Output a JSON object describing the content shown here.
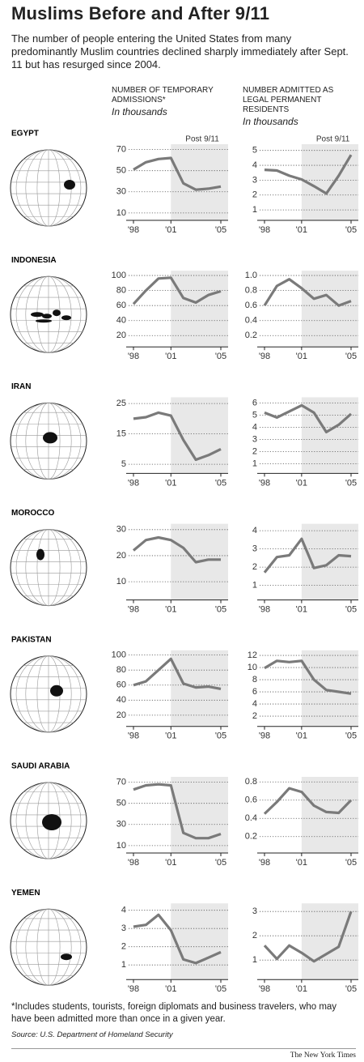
{
  "title": "Muslims Before and After 9/11",
  "subtitle": "The number of people entering the United States from many predominantly Muslim countries declined sharply immediately after Sept. 11 but has resurged since 2004.",
  "column_headers": [
    {
      "title": "NUMBER OF TEMPORARY ADMISSIONS*",
      "units": "In thousands"
    },
    {
      "title": "NUMBER ADMITTED AS LEGAL PERMANENT RESIDENTS",
      "units": "In thousands"
    }
  ],
  "shade_from_index": 3,
  "chart_data": [
    {
      "type": "line",
      "title": "EGYPT",
      "annotation": "Post 9/11",
      "categories": [
        "'98",
        null,
        null,
        "'01",
        null,
        null,
        null,
        "'05"
      ],
      "color": "#7a7a7a",
      "values": [
        51,
        58,
        61,
        62,
        38,
        32,
        33,
        35
      ],
      "ylim": [
        3,
        72
      ],
      "yticks": [
        10,
        30,
        50,
        70
      ]
    },
    {
      "type": "line",
      "annotation": "Post 9/11",
      "categories": [
        "'98",
        null,
        null,
        "'01",
        null,
        null,
        null,
        "'05"
      ],
      "color": "#7a7a7a",
      "values": [
        3.7,
        3.65,
        3.3,
        3.05,
        2.6,
        2.1,
        3.3,
        4.7
      ],
      "ylim": [
        0.3,
        5.2
      ],
      "yticks": [
        1,
        2,
        3,
        4,
        5
      ]
    },
    {
      "type": "line",
      "title": "INDONESIA",
      "categories": [
        "'98",
        null,
        null,
        "'01",
        null,
        null,
        null,
        "'05"
      ],
      "color": "#7a7a7a",
      "values": [
        62,
        80,
        96,
        97,
        70,
        64,
        74,
        79
      ],
      "ylim": [
        5,
        102
      ],
      "yticks": [
        20,
        40,
        60,
        80,
        100
      ]
    },
    {
      "type": "line",
      "categories": [
        "'98",
        null,
        null,
        "'01",
        null,
        null,
        null,
        "'05"
      ],
      "color": "#7a7a7a",
      "values": [
        0.6,
        0.86,
        0.95,
        0.83,
        0.69,
        0.74,
        0.6,
        0.66
      ],
      "ylim": [
        0.05,
        1.02
      ],
      "yticks": [
        0.2,
        0.4,
        0.6,
        0.8,
        {
          "value": 1.0,
          "label": "1.0"
        }
      ]
    },
    {
      "type": "line",
      "title": "IRAN",
      "categories": [
        "'98",
        null,
        null,
        "'01",
        null,
        null,
        null,
        "'05"
      ],
      "color": "#7a7a7a",
      "values": [
        20,
        20.5,
        22,
        21,
        13,
        6.5,
        8,
        10
      ],
      "ylim": [
        2,
        26
      ],
      "yticks": [
        5,
        15,
        25
      ]
    },
    {
      "type": "line",
      "categories": [
        "'98",
        null,
        null,
        "'01",
        null,
        null,
        null,
        "'05"
      ],
      "color": "#7a7a7a",
      "values": [
        5.2,
        4.8,
        5.3,
        5.8,
        5.2,
        3.6,
        4.2,
        5.1
      ],
      "ylim": [
        0.2,
        6.2
      ],
      "yticks": [
        1,
        2,
        3,
        4,
        5,
        6
      ]
    },
    {
      "type": "line",
      "title": "MOROCCO",
      "categories": [
        "'98",
        null,
        null,
        "'01",
        null,
        null,
        null,
        "'05"
      ],
      "color": "#7a7a7a",
      "values": [
        22,
        26,
        27,
        26,
        23,
        17.5,
        18.5,
        18.5
      ],
      "ylim": [
        3,
        31
      ],
      "yticks": [
        10,
        20,
        30
      ]
    },
    {
      "type": "line",
      "categories": [
        "'98",
        null,
        null,
        "'01",
        null,
        null,
        null,
        "'05"
      ],
      "color": "#7a7a7a",
      "values": [
        1.7,
        2.55,
        2.65,
        3.55,
        1.95,
        2.1,
        2.65,
        2.6
      ],
      "ylim": [
        0.2,
        4.2
      ],
      "yticks": [
        1,
        2,
        3,
        4
      ]
    },
    {
      "type": "line",
      "title": "PAKISTAN",
      "categories": [
        "'98",
        null,
        null,
        "'01",
        null,
        null,
        null,
        "'05"
      ],
      "color": "#7a7a7a",
      "values": [
        60,
        65,
        80,
        95,
        62,
        57,
        58,
        55
      ],
      "ylim": [
        5,
        102
      ],
      "yticks": [
        20,
        40,
        60,
        80,
        100
      ]
    },
    {
      "type": "line",
      "categories": [
        "'98",
        null,
        null,
        "'01",
        null,
        null,
        null,
        "'05"
      ],
      "color": "#7a7a7a",
      "values": [
        9.9,
        11.1,
        10.9,
        11.1,
        8,
        6.3,
        6,
        5.7
      ],
      "ylim": [
        0.3,
        12.3
      ],
      "yticks": [
        2,
        4,
        6,
        8,
        10,
        12
      ]
    },
    {
      "type": "line",
      "title": "SAUDI ARABIA",
      "categories": [
        "'98",
        null,
        null,
        "'01",
        null,
        null,
        null,
        "'05"
      ],
      "color": "#7a7a7a",
      "values": [
        63,
        67,
        68,
        67,
        22,
        17,
        17,
        21
      ],
      "ylim": [
        3,
        72
      ],
      "yticks": [
        10,
        30,
        50,
        70
      ]
    },
    {
      "type": "line",
      "categories": [
        "'98",
        null,
        null,
        "'01",
        null,
        null,
        null,
        "'05"
      ],
      "color": "#7a7a7a",
      "values": [
        0.45,
        0.58,
        0.73,
        0.69,
        0.54,
        0.47,
        0.46,
        0.6
      ],
      "ylim": [
        0.02,
        0.82
      ],
      "yticks": [
        0.2,
        0.4,
        0.6,
        0.8
      ]
    },
    {
      "type": "line",
      "title": "YEMEN",
      "categories": [
        "'98",
        null,
        null,
        "'01",
        null,
        null,
        null,
        "'05"
      ],
      "color": "#7a7a7a",
      "values": [
        3.1,
        3.2,
        3.75,
        2.9,
        1.3,
        1.1,
        1.4,
        1.7
      ],
      "ylim": [
        0.2,
        4.2
      ],
      "yticks": [
        1,
        2,
        3,
        4
      ]
    },
    {
      "type": "line",
      "categories": [
        "'98",
        null,
        null,
        "'01",
        null,
        null,
        null,
        "'05"
      ],
      "color": "#7a7a7a",
      "values": [
        1.6,
        1.05,
        1.6,
        1.3,
        0.95,
        1.25,
        1.55,
        3.0
      ],
      "ylim": [
        0.2,
        3.2
      ],
      "yticks": [
        1,
        2,
        3
      ]
    }
  ],
  "footnote": "*Includes students, tourists, foreign diplomats and business travelers, who may have been admitted more than once in a given year.",
  "source": "Source: U.S. Department of Homeland Security",
  "credit": "The New York Times"
}
